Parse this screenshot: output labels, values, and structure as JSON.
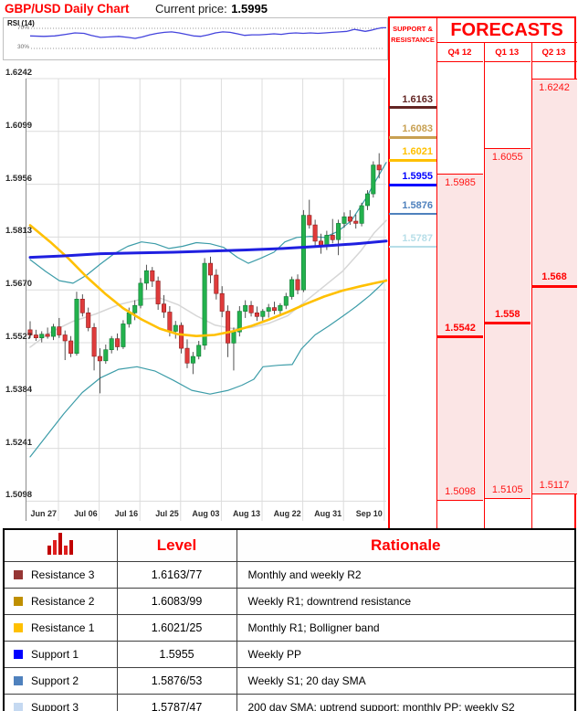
{
  "header": {
    "title": "GBP/USD Daily Chart",
    "current_price_label": "Current price:",
    "current_price_value": "1.5995"
  },
  "rsi_panel": {
    "label": "RSI (14)",
    "upper_tick_label": "70%",
    "lower_tick_label": "30%"
  },
  "chart_data": {
    "type": "candlestick",
    "title": "GBP/USD Daily Chart",
    "currency_pair": "GBP/USD",
    "current_price": 1.5995,
    "ylim": [
      1.505,
      1.628
    ],
    "grid": true,
    "y_tick_labels": [
      "1.6242",
      "1.6099",
      "1.5956",
      "1.5813",
      "1.5670",
      "1.5527",
      "1.5384",
      "1.5241",
      "1.5098"
    ],
    "y_tick_values": [
      1.6242,
      1.6099,
      1.5956,
      1.5813,
      1.567,
      1.5527,
      1.5384,
      1.5241,
      1.5098
    ],
    "x_tick_labels": [
      "Jun 27",
      "Jul 06",
      "Jul 16",
      "Jul 25",
      "Aug 03",
      "Aug 13",
      "Aug 22",
      "Aug 31",
      "Sep 10"
    ],
    "candles_ohlc": [
      [
        1.5562,
        1.5585,
        1.554,
        1.5548
      ],
      [
        1.5548,
        1.5562,
        1.5532,
        1.554
      ],
      [
        1.554,
        1.5558,
        1.5528,
        1.555
      ],
      [
        1.555,
        1.5568,
        1.5538,
        1.5544
      ],
      [
        1.5544,
        1.5578,
        1.5534,
        1.557
      ],
      [
        1.557,
        1.5594,
        1.554,
        1.5548
      ],
      [
        1.5548,
        1.556,
        1.548,
        1.5532
      ],
      [
        1.5532,
        1.5545,
        1.5488,
        1.5498
      ],
      [
        1.5498,
        1.5665,
        1.5492,
        1.5645
      ],
      [
        1.5645,
        1.5658,
        1.5598,
        1.5608
      ],
      [
        1.5608,
        1.5622,
        1.5558,
        1.5568
      ],
      [
        1.5568,
        1.558,
        1.5452,
        1.549
      ],
      [
        1.549,
        1.5512,
        1.539,
        1.5478
      ],
      [
        1.5478,
        1.5522,
        1.547,
        1.5508
      ],
      [
        1.5508,
        1.5545,
        1.5498,
        1.5538
      ],
      [
        1.5538,
        1.5552,
        1.5506,
        1.5516
      ],
      [
        1.5516,
        1.5588,
        1.551,
        1.5578
      ],
      [
        1.5578,
        1.5622,
        1.5568,
        1.5608
      ],
      [
        1.5608,
        1.5642,
        1.5588,
        1.5628
      ],
      [
        1.5628,
        1.5702,
        1.562,
        1.5688
      ],
      [
        1.5688,
        1.5738,
        1.567,
        1.5722
      ],
      [
        1.5722,
        1.5732,
        1.5678,
        1.5694
      ],
      [
        1.5694,
        1.5706,
        1.5616,
        1.5632
      ],
      [
        1.5632,
        1.5656,
        1.5594,
        1.561
      ],
      [
        1.561,
        1.5626,
        1.5544,
        1.5558
      ],
      [
        1.5558,
        1.5586,
        1.5538,
        1.5574
      ],
      [
        1.5574,
        1.5582,
        1.5498,
        1.5512
      ],
      [
        1.5512,
        1.5536,
        1.5458,
        1.5472
      ],
      [
        1.5472,
        1.5502,
        1.5442,
        1.549
      ],
      [
        1.549,
        1.5532,
        1.5482,
        1.552
      ],
      [
        1.552,
        1.5756,
        1.5508,
        1.5742
      ],
      [
        1.5742,
        1.576,
        1.5688,
        1.571
      ],
      [
        1.571,
        1.5726,
        1.5644,
        1.566
      ],
      [
        1.566,
        1.568,
        1.5596,
        1.5612
      ],
      [
        1.5612,
        1.5628,
        1.5488,
        1.5526
      ],
      [
        1.5526,
        1.5568,
        1.5452,
        1.5556
      ],
      [
        1.5556,
        1.5626,
        1.5544,
        1.5612
      ],
      [
        1.5612,
        1.5642,
        1.5594,
        1.5628
      ],
      [
        1.5628,
        1.564,
        1.5598,
        1.5608
      ],
      [
        1.5608,
        1.5625,
        1.5586,
        1.5598
      ],
      [
        1.5598,
        1.5618,
        1.5584,
        1.5612
      ],
      [
        1.5612,
        1.5632,
        1.5595,
        1.5622
      ],
      [
        1.5622,
        1.5638,
        1.5604,
        1.5614
      ],
      [
        1.5614,
        1.5634,
        1.56,
        1.5628
      ],
      [
        1.5628,
        1.5662,
        1.5618,
        1.5652
      ],
      [
        1.5652,
        1.5706,
        1.5644,
        1.5698
      ],
      [
        1.5698,
        1.5712,
        1.5658,
        1.567
      ],
      [
        1.567,
        1.5886,
        1.5664,
        1.5872
      ],
      [
        1.5872,
        1.5914,
        1.5836,
        1.5846
      ],
      [
        1.5846,
        1.586,
        1.579,
        1.5802
      ],
      [
        1.5802,
        1.5822,
        1.5768,
        1.5788
      ],
      [
        1.5788,
        1.583,
        1.5778,
        1.5818
      ],
      [
        1.5818,
        1.5862,
        1.5796,
        1.5806
      ],
      [
        1.5806,
        1.586,
        1.5764,
        1.585
      ],
      [
        1.585,
        1.588,
        1.5838,
        1.5868
      ],
      [
        1.5868,
        1.5886,
        1.5846,
        1.5856
      ],
      [
        1.5856,
        1.5874,
        1.5836,
        1.585
      ],
      [
        1.585,
        1.5906,
        1.5842,
        1.5898
      ],
      [
        1.5898,
        1.594,
        1.5886,
        1.593
      ],
      [
        1.593,
        1.6018,
        1.592,
        1.6008
      ],
      [
        1.6008,
        1.604,
        1.5972,
        1.5995
      ]
    ],
    "candle_up_color": "#23B14D",
    "candle_down_color": "#DF3B3B",
    "overlays": [
      {
        "name": "200-day-sma",
        "color": "#1F1FE0",
        "width": 3,
        "points": [
          [
            33,
            1.5758
          ],
          [
            70,
            1.5762
          ],
          [
            110,
            1.5768
          ],
          [
            150,
            1.577
          ],
          [
            190,
            1.5772
          ],
          [
            230,
            1.5775
          ],
          [
            270,
            1.5778
          ],
          [
            310,
            1.5782
          ],
          [
            350,
            1.5788
          ],
          [
            390,
            1.5795
          ],
          [
            423,
            1.5802
          ]
        ]
      },
      {
        "name": "slow-sma-yellow",
        "color": "#FFC000",
        "width": 2.6,
        "points": [
          [
            33,
            1.5845
          ],
          [
            55,
            1.58
          ],
          [
            75,
            1.5755
          ],
          [
            95,
            1.5705
          ],
          [
            115,
            1.566
          ],
          [
            135,
            1.562
          ],
          [
            155,
            1.559
          ],
          [
            175,
            1.5565
          ],
          [
            195,
            1.555
          ],
          [
            215,
            1.5545
          ],
          [
            235,
            1.5548
          ],
          [
            255,
            1.5558
          ],
          [
            275,
            1.5572
          ],
          [
            295,
            1.559
          ],
          [
            315,
            1.561
          ],
          [
            335,
            1.5632
          ],
          [
            355,
            1.5652
          ],
          [
            375,
            1.5668
          ],
          [
            395,
            1.568
          ],
          [
            410,
            1.5688
          ],
          [
            423,
            1.5695
          ]
        ]
      },
      {
        "name": "20-day-sma-gray",
        "color": "#D6D6D6",
        "width": 1.5,
        "points": [
          [
            33,
            1.5515
          ],
          [
            55,
            1.5555
          ],
          [
            80,
            1.5585
          ],
          [
            105,
            1.5605
          ],
          [
            130,
            1.563
          ],
          [
            155,
            1.5645
          ],
          [
            175,
            1.5648
          ],
          [
            195,
            1.563
          ],
          [
            215,
            1.56
          ],
          [
            235,
            1.5575
          ],
          [
            255,
            1.5565
          ],
          [
            275,
            1.5568
          ],
          [
            295,
            1.558
          ],
          [
            315,
            1.56
          ],
          [
            335,
            1.564
          ],
          [
            355,
            1.568
          ],
          [
            375,
            1.572
          ],
          [
            395,
            1.5775
          ],
          [
            410,
            1.5825
          ],
          [
            423,
            1.5858
          ]
        ]
      },
      {
        "name": "bollinger-upper",
        "color": "#3C9CA8",
        "width": 1.2,
        "points": [
          [
            33,
            1.5752
          ],
          [
            50,
            1.572
          ],
          [
            65,
            1.5695
          ],
          [
            80,
            1.5688
          ],
          [
            95,
            1.571
          ],
          [
            110,
            1.574
          ],
          [
            125,
            1.5768
          ],
          [
            140,
            1.5788
          ],
          [
            155,
            1.58
          ],
          [
            170,
            1.5795
          ],
          [
            185,
            1.5782
          ],
          [
            200,
            1.5788
          ],
          [
            215,
            1.5798
          ],
          [
            230,
            1.5795
          ],
          [
            245,
            1.5785
          ],
          [
            260,
            1.5758
          ],
          [
            272,
            1.5742
          ],
          [
            285,
            1.5755
          ],
          [
            300,
            1.5772
          ],
          [
            312,
            1.58
          ],
          [
            325,
            1.5812
          ],
          [
            340,
            1.5815
          ],
          [
            355,
            1.5812
          ],
          [
            370,
            1.5828
          ],
          [
            385,
            1.5858
          ],
          [
            400,
            1.5915
          ],
          [
            412,
            1.5968
          ],
          [
            423,
            1.6015
          ]
        ]
      },
      {
        "name": "bollinger-lower",
        "color": "#3C9CA8",
        "width": 1.2,
        "points": [
          [
            33,
            1.5218
          ],
          [
            50,
            1.5272
          ],
          [
            70,
            1.5335
          ],
          [
            90,
            1.5392
          ],
          [
            110,
            1.5432
          ],
          [
            130,
            1.5455
          ],
          [
            150,
            1.5462
          ],
          [
            170,
            1.545
          ],
          [
            190,
            1.5425
          ],
          [
            210,
            1.5398
          ],
          [
            230,
            1.5388
          ],
          [
            250,
            1.5398
          ],
          [
            265,
            1.5412
          ],
          [
            278,
            1.5428
          ],
          [
            288,
            1.5462
          ],
          [
            305,
            1.5466
          ],
          [
            320,
            1.5468
          ],
          [
            330,
            1.551
          ],
          [
            345,
            1.5548
          ],
          [
            360,
            1.5572
          ],
          [
            375,
            1.5598
          ],
          [
            390,
            1.5625
          ],
          [
            405,
            1.5655
          ],
          [
            415,
            1.5678
          ],
          [
            423,
            1.5698
          ]
        ]
      }
    ],
    "rsi": {
      "label": "RSI (14)",
      "upper": 70,
      "lower": 30,
      "series": [
        [
          33,
          55
        ],
        [
          48,
          54
        ],
        [
          60,
          55
        ],
        [
          72,
          58
        ],
        [
          82,
          61
        ],
        [
          92,
          60
        ],
        [
          100,
          56
        ],
        [
          110,
          52
        ],
        [
          120,
          53
        ],
        [
          130,
          54
        ],
        [
          140,
          52
        ],
        [
          148,
          50
        ],
        [
          156,
          53
        ],
        [
          164,
          57
        ],
        [
          172,
          60
        ],
        [
          180,
          62
        ],
        [
          188,
          63
        ],
        [
          196,
          61
        ],
        [
          204,
          58
        ],
        [
          212,
          55
        ],
        [
          220,
          54
        ],
        [
          228,
          57
        ],
        [
          236,
          61
        ],
        [
          244,
          63
        ],
        [
          252,
          62
        ],
        [
          260,
          59
        ],
        [
          268,
          56
        ],
        [
          276,
          57
        ],
        [
          284,
          57
        ],
        [
          292,
          58
        ],
        [
          300,
          59
        ],
        [
          308,
          58
        ],
        [
          316,
          60
        ],
        [
          324,
          61
        ],
        [
          332,
          60
        ],
        [
          340,
          61
        ],
        [
          348,
          60
        ],
        [
          356,
          61
        ],
        [
          364,
          62
        ],
        [
          372,
          63
        ],
        [
          380,
          64
        ],
        [
          388,
          68
        ],
        [
          394,
          66
        ],
        [
          400,
          64
        ],
        [
          406,
          66
        ],
        [
          412,
          69
        ],
        [
          418,
          71
        ],
        [
          423,
          71
        ]
      ]
    },
    "support_resistance_levels": [
      {
        "name": "Resistance 3",
        "label": "1.6163",
        "price": 1.6163,
        "color": "#632523",
        "thickness": 3
      },
      {
        "name": "Resistance 2",
        "label": "1.6083",
        "price": 1.6083,
        "color": "#C8A052",
        "thickness": 2.5
      },
      {
        "name": "Resistance 1",
        "label": "1.6021",
        "price": 1.6021,
        "color": "#FFC000",
        "thickness": 2.5
      },
      {
        "name": "Support 1",
        "label": "1.5955",
        "price": 1.5955,
        "color": "#0000FF",
        "thickness": 3
      },
      {
        "name": "Support 2",
        "label": "1.5876",
        "price": 1.5876,
        "color": "#4F81BD",
        "thickness": 2.5
      },
      {
        "name": "Support 3",
        "label": "1.5787",
        "price": 1.5787,
        "color": "#B7DEE8",
        "thickness": 2.5
      }
    ],
    "forecasts": [
      {
        "quarter": "Q4 12",
        "high": 1.5985,
        "mid": 1.5542,
        "low": 1.5098,
        "high_label": "1.5985",
        "mid_label": "1.5542",
        "low_label": "1.5098"
      },
      {
        "quarter": "Q1 13",
        "high": 1.6055,
        "mid": 1.558,
        "low": 1.5105,
        "high_label": "1.6055",
        "mid_label": "1.558",
        "low_label": "1.5105"
      },
      {
        "quarter": "Q2 13",
        "high": 1.6242,
        "mid": 1.568,
        "low": 1.5117,
        "high_label": "1.6242",
        "mid_label": "1.568",
        "low_label": "1.5117"
      }
    ]
  },
  "right_panel": {
    "sr_header": "SUPPORT & RESISTANCE",
    "forecasts_title": "FORECASTS",
    "pink_fill": "#FBE5E5",
    "border_color": "#FF0000"
  },
  "table": {
    "level_header": "Level",
    "rationale_header": "Rationale",
    "icon": "bar-chart-icon",
    "rows": [
      {
        "square_color": "#963634",
        "label": "Resistance 3",
        "level": "1.6163/77",
        "rationale": "Monthly and weekly R2"
      },
      {
        "square_color": "#BF8F00",
        "label": "Resistance 2",
        "level": "1.6083/99",
        "rationale": "Weekly R1; downtrend resistance"
      },
      {
        "square_color": "#FFC000",
        "label": "Resistance 1",
        "level": "1.6021/25",
        "rationale": "Monthly R1; Bolligner band"
      },
      {
        "square_color": "#0000FF",
        "label": "Support 1",
        "level": "1.5955",
        "rationale": "Weekly PP"
      },
      {
        "square_color": "#4F81BD",
        "label": "Support 2",
        "level": "1.5876/53",
        "rationale": "Weekly S1; 20 day SMA"
      },
      {
        "square_color": "#C5D9F1",
        "label": "Support 3",
        "level": "1.5787/47",
        "rationale": "200 day SMA: uptrend support; monthly PP; weekly S2"
      }
    ]
  }
}
